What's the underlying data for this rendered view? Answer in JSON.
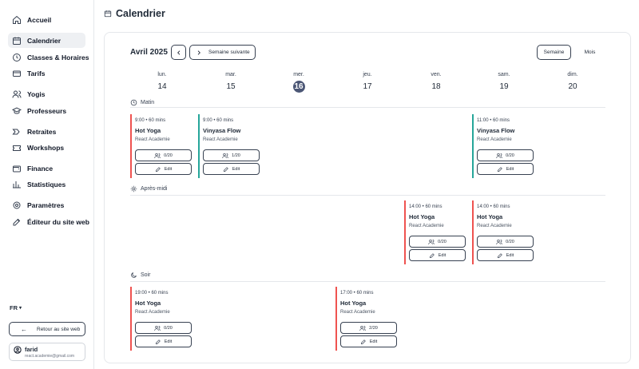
{
  "sidebar": {
    "items": [
      {
        "label": "Accueil",
        "icon": "home-icon"
      },
      {
        "label": "Calendrier",
        "icon": "calendar-icon",
        "active": true
      },
      {
        "label": "Classes & Horaires",
        "icon": "clock-icon"
      },
      {
        "label": "Tarifs",
        "icon": "credit-card-icon"
      },
      {
        "label": "Yogis",
        "icon": "users-icon"
      },
      {
        "label": "Professeurs",
        "icon": "graduation-cap-icon"
      },
      {
        "label": "Retraites",
        "icon": "route-icon"
      },
      {
        "label": "Workshops",
        "icon": "ticket-icon"
      },
      {
        "label": "Finance",
        "icon": "wallet-icon"
      },
      {
        "label": "Statistiques",
        "icon": "bar-chart-icon"
      },
      {
        "label": "Paramètres",
        "icon": "gear-icon"
      },
      {
        "label": "Éditeur du site web",
        "icon": "edit-icon"
      }
    ],
    "language": "FR",
    "back_label": "Retour au site web",
    "user": {
      "name": "farid",
      "email": "react.academie@gmail.com"
    }
  },
  "header": {
    "title": "Calendrier"
  },
  "calendar": {
    "month": "Avril 2025",
    "next_label": "Semaine suivante",
    "view_week": "Semaine",
    "view_month": "Mois",
    "days": [
      {
        "name": "lun.",
        "date": "14"
      },
      {
        "name": "mar.",
        "date": "15"
      },
      {
        "name": "mer.",
        "date": "16",
        "today": true
      },
      {
        "name": "jeu.",
        "date": "17"
      },
      {
        "name": "ven.",
        "date": "18"
      },
      {
        "name": "sam.",
        "date": "19"
      },
      {
        "name": "dim.",
        "date": "20"
      }
    ],
    "sections": {
      "morning": "Matin",
      "afternoon": "Après-midi",
      "evening": "Soir"
    },
    "classes": [
      {
        "section": "morning",
        "day": 0,
        "time": "9:00 • 60 mins",
        "name": "Hot Yoga",
        "studio": "React Academie",
        "capacity": "0/20",
        "edit": "Edit",
        "color": "#ef5350"
      },
      {
        "section": "morning",
        "day": 1,
        "time": "9:00 • 60 mins",
        "name": "Vinyasa Flow",
        "studio": "React Academie",
        "capacity": "1/20",
        "edit": "Edit",
        "color": "#26a69a"
      },
      {
        "section": "morning",
        "day": 5,
        "time": "11:00 • 60 mins",
        "name": "Vinyasa Flow",
        "studio": "React Academie",
        "capacity": "0/20",
        "edit": "Edit",
        "color": "#26a69a"
      },
      {
        "section": "afternoon",
        "day": 4,
        "time": "14:00 • 60 mins",
        "name": "Hot Yoga",
        "studio": "React Academie",
        "capacity": "0/20",
        "edit": "Edit",
        "color": "#ef5350"
      },
      {
        "section": "afternoon",
        "day": 5,
        "time": "14:00 • 60 mins",
        "name": "Hot Yoga",
        "studio": "React Academie",
        "capacity": "0/20",
        "edit": "Edit",
        "color": "#ef5350"
      },
      {
        "section": "evening",
        "day": 0,
        "time": "19:00 • 60 mins",
        "name": "Hot Yoga",
        "studio": "React Academie",
        "capacity": "0/20",
        "edit": "Edit",
        "color": "#ef5350"
      },
      {
        "section": "evening",
        "day": 3,
        "time": "17:00 • 60 mins",
        "name": "Hot Yoga",
        "studio": "React Academie",
        "capacity": "2/20",
        "edit": "Edit",
        "color": "#ef5350"
      }
    ]
  }
}
